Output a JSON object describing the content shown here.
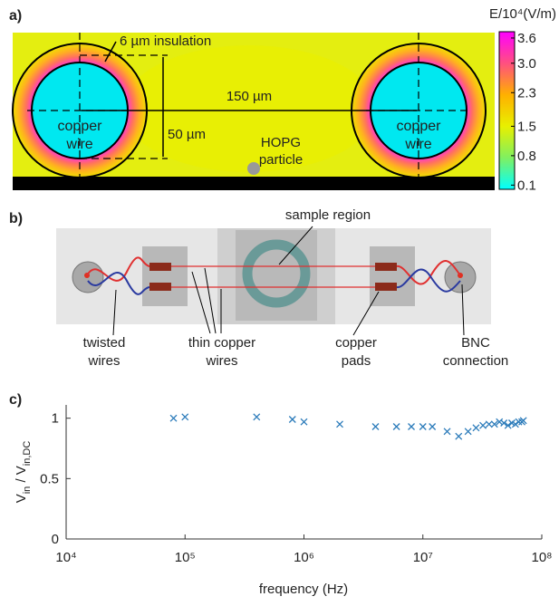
{
  "panel_a": {
    "label": "a)",
    "insulation": "6 µm insulation",
    "spacing": "150 µm",
    "diameter": "50 µm",
    "left_wire": [
      "copper",
      "wire"
    ],
    "right_wire": [
      "copper",
      "wire"
    ],
    "particle": [
      "HOPG",
      "particle"
    ],
    "colorbar": {
      "title": "E/10⁴(V/m)",
      "clim": [
        0,
        3.75
      ],
      "ticks": [
        {
          "value": 3.6,
          "label": "3.6"
        },
        {
          "value": 3.0,
          "label": "3.0"
        },
        {
          "value": 2.3,
          "label": "2.3"
        },
        {
          "value": 1.5,
          "label": "1.5"
        },
        {
          "value": 0.8,
          "label": "0.8"
        },
        {
          "value": 0.1,
          "label": "0.1"
        }
      ]
    }
  },
  "panel_b": {
    "label": "b)",
    "sample_region": "sample region",
    "twisted": [
      "twisted",
      "wires"
    ],
    "thin": [
      "thin copper",
      "wires"
    ],
    "pads": [
      "copper",
      "pads"
    ],
    "bnc": [
      "BNC",
      "connection"
    ]
  },
  "chart_data": {
    "type": "scatter",
    "label": "c)",
    "xlabel": "frequency (Hz)",
    "ylabel": [
      "V",
      "in",
      " / V",
      "in,DC"
    ],
    "color": "#2b7bba",
    "xscale": "log",
    "x": [
      80000,
      100000,
      400000,
      800000,
      1000000,
      2000000,
      4000000,
      6000000,
      8000000,
      10000000,
      12000000,
      16000000,
      20000000,
      24000000,
      28000000,
      32000000,
      36000000,
      40000000,
      44000000,
      48000000,
      52000000,
      56000000,
      60000000,
      64000000,
      68000000,
      70000000
    ],
    "values": [
      1.0,
      1.01,
      1.01,
      0.99,
      0.97,
      0.95,
      0.93,
      0.93,
      0.93,
      0.93,
      0.93,
      0.89,
      0.85,
      0.89,
      0.92,
      0.94,
      0.95,
      0.95,
      0.97,
      0.96,
      0.94,
      0.96,
      0.95,
      0.97,
      0.97,
      0.98
    ],
    "xlim": [
      10000,
      100000000
    ],
    "ylim": [
      0,
      1.11
    ],
    "xticks": [
      {
        "value": 10000,
        "label": "10⁴"
      },
      {
        "value": 100000,
        "label": "10⁵"
      },
      {
        "value": 1000000,
        "label": "10⁶"
      },
      {
        "value": 10000000,
        "label": "10⁷"
      },
      {
        "value": 100000000,
        "label": "10⁸"
      }
    ],
    "yticks": [
      0,
      0.5,
      1
    ]
  }
}
